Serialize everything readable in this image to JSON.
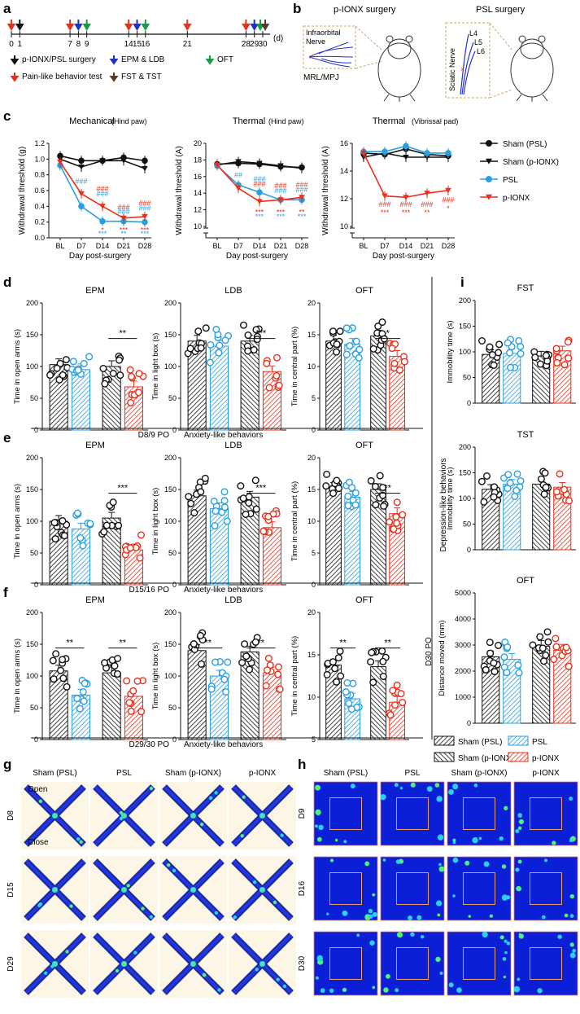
{
  "colors": {
    "black": "#111111",
    "red": "#e8301c",
    "blue": "#2a9fe0",
    "darkblue": "#1f2fcc",
    "green": "#179a48",
    "brown": "#5a3a22",
    "heat_bg": "#0a1fd6",
    "arena_bg": "#fbf6e6"
  },
  "panels": {
    "a": "a",
    "b": "b",
    "c": "c",
    "d": "d",
    "e": "e",
    "f": "f",
    "g": "g",
    "h": "h",
    "i": "i"
  },
  "timeline": {
    "unit": "(d)",
    "ticks": [
      "0",
      "1",
      "7",
      "8",
      "9",
      "14",
      "15",
      "16",
      "21",
      "28",
      "29",
      "30"
    ],
    "legend": [
      {
        "label": "p-IONX/PSL surgery",
        "color": "#111111"
      },
      {
        "label": "EPM & LDB",
        "color": "#1f2fcc"
      },
      {
        "label": "OFT",
        "color": "#179a48"
      },
      {
        "label": "Pain-like behavior test",
        "color": "#e8301c"
      },
      {
        "label": "FST & TST",
        "color": "#5a3a22"
      }
    ]
  },
  "schematic": {
    "left_title": "p-IONX surgery",
    "right_title": "PSL surgery",
    "left_box": [
      "Infraorbital",
      "Nerve"
    ],
    "left_caption": "MRL/MPJ",
    "right_levels": [
      "L4",
      "L5",
      "L6"
    ],
    "right_box": "Sciatic Nerve"
  },
  "chart_data": [
    {
      "id": "c-mech",
      "type": "line",
      "title": "Mechanical",
      "subtitle": "(Hind paw)",
      "ylabel": "Withdrawal threshold (g)",
      "xlabel": "Day post-surgery",
      "categories": [
        "BL",
        "D7",
        "D14",
        "D21",
        "D28"
      ],
      "ylim": [
        0,
        1.2
      ],
      "yticks": [
        "0.0",
        "0.2",
        "0.4",
        "0.6",
        "0.8",
        "1.0",
        "1.2"
      ],
      "series": [
        {
          "name": "Sham (PSL)",
          "values": [
            1.04,
            0.98,
            0.98,
            1.02,
            0.98
          ]
        },
        {
          "name": "Sham (p-IONX)",
          "values": [
            1.0,
            0.9,
            0.98,
            0.98,
            0.88
          ]
        },
        {
          "name": "PSL",
          "values": [
            0.92,
            0.4,
            0.21,
            0.21,
            0.2
          ]
        },
        {
          "name": "p-IONX",
          "values": [
            0.96,
            0.56,
            0.4,
            0.25,
            0.27
          ]
        }
      ],
      "annotations": [
        {
          "text": "###",
          "x": "D7",
          "y": 0.72,
          "color": "#2a9fe0"
        },
        {
          "text": "###",
          "x": "D14",
          "y": 0.62,
          "color": "#e8301c"
        },
        {
          "text": "###",
          "x": "D14",
          "y": 0.56,
          "color": "#2a9fe0"
        },
        {
          "text": "*",
          "x": "D14",
          "y": 0.1,
          "color": "#e8301c"
        },
        {
          "text": "***",
          "x": "D14",
          "y": 0.05,
          "color": "#2a9fe0"
        },
        {
          "text": "###",
          "x": "D21",
          "y": 0.39,
          "color": "#e8301c"
        },
        {
          "text": "###",
          "x": "D21",
          "y": 0.33,
          "color": "#2a9fe0"
        },
        {
          "text": "***",
          "x": "D21",
          "y": 0.1,
          "color": "#e8301c"
        },
        {
          "text": "**",
          "x": "D21",
          "y": 0.05,
          "color": "#2a9fe0"
        },
        {
          "text": "###",
          "x": "D28",
          "y": 0.44,
          "color": "#e8301c"
        },
        {
          "text": "###",
          "x": "D28",
          "y": 0.38,
          "color": "#2a9fe0"
        },
        {
          "text": "***",
          "x": "D28",
          "y": 0.1,
          "color": "#e8301c"
        },
        {
          "text": "***",
          "x": "D28",
          "y": 0.05,
          "color": "#2a9fe0"
        }
      ]
    },
    {
      "id": "c-thermal-hind",
      "type": "line",
      "title": "Thermal",
      "subtitle": "(Hind paw)",
      "ylabel": "Withdrawal threshold (A)",
      "xlabel": "Day post-surgery",
      "categories": [
        "BL",
        "D7",
        "D14",
        "D21",
        "D28"
      ],
      "ylim": [
        10,
        20
      ],
      "yticks": [
        "10",
        "12",
        "14",
        "16",
        "18",
        "20"
      ],
      "axis_break": true,
      "series": [
        {
          "name": "Sham (PSL)",
          "values": [
            17.5,
            17.6,
            17.5,
            17.2,
            17.1
          ]
        },
        {
          "name": "Sham (p-IONX)",
          "values": [
            17.4,
            17.8,
            17.6,
            17.3,
            17.0
          ]
        },
        {
          "name": "PSL",
          "values": [
            17.3,
            15.0,
            14.1,
            13.2,
            13.2
          ]
        },
        {
          "name": "p-IONX",
          "values": [
            17.4,
            14.6,
            13.0,
            13.2,
            13.5
          ]
        }
      ],
      "annotations": [
        {
          "text": "##",
          "x": "D7",
          "y": 16.2,
          "color": "#2a9fe0"
        },
        {
          "text": "###",
          "x": "D14",
          "y": 15.7,
          "color": "#2a9fe0"
        },
        {
          "text": "###",
          "x": "D14",
          "y": 15.1,
          "color": "#e8301c"
        },
        {
          "text": "***",
          "x": "D14",
          "y": 11.7,
          "color": "#e8301c"
        },
        {
          "text": "***",
          "x": "D14",
          "y": 11.2,
          "color": "#2a9fe0"
        },
        {
          "text": "###",
          "x": "D21",
          "y": 14.9,
          "color": "#e8301c"
        },
        {
          "text": "###",
          "x": "D21",
          "y": 14.3,
          "color": "#2a9fe0"
        },
        {
          "text": "***",
          "x": "D21",
          "y": 11.7,
          "color": "#e8301c"
        },
        {
          "text": "***",
          "x": "D21",
          "y": 11.2,
          "color": "#2a9fe0"
        },
        {
          "text": "###",
          "x": "D28",
          "y": 15.0,
          "color": "#e8301c"
        },
        {
          "text": "###",
          "x": "D28",
          "y": 14.4,
          "color": "#2a9fe0"
        },
        {
          "text": "**",
          "x": "D28",
          "y": 11.7,
          "color": "#e8301c"
        },
        {
          "text": "***",
          "x": "D28",
          "y": 11.2,
          "color": "#2a9fe0"
        }
      ]
    },
    {
      "id": "c-thermal-vib",
      "type": "line",
      "title": "Thermal",
      "subtitle": "(Vibrissal pad)",
      "ylabel": "Withdrawal threshold (A)",
      "xlabel": "Day post-surgery",
      "categories": [
        "BL",
        "D7",
        "D14",
        "D21",
        "D28"
      ],
      "ylim": [
        10,
        16
      ],
      "yticks": [
        "10",
        "12",
        "14",
        "16"
      ],
      "axis_break": true,
      "series": [
        {
          "name": "Sham (PSL)",
          "values": [
            15.3,
            15.2,
            15.6,
            15.2,
            15.1
          ]
        },
        {
          "name": "Sham (p-IONX)",
          "values": [
            15.0,
            15.3,
            15.0,
            15.0,
            15.0
          ]
        },
        {
          "name": "PSL",
          "values": [
            15.4,
            15.4,
            15.8,
            15.3,
            15.3
          ]
        },
        {
          "name": "p-IONX",
          "values": [
            15.3,
            12.2,
            12.1,
            12.4,
            12.6
          ]
        }
      ],
      "annotations": [
        {
          "text": "###",
          "x": "D7",
          "y": 11.6,
          "color": "#e8301c"
        },
        {
          "text": "***",
          "x": "D7",
          "y": 11.0,
          "color": "#e8301c"
        },
        {
          "text": "###",
          "x": "D14",
          "y": 11.6,
          "color": "#e8301c"
        },
        {
          "text": "***",
          "x": "D14",
          "y": 11.0,
          "color": "#e8301c"
        },
        {
          "text": "###",
          "x": "D21",
          "y": 11.6,
          "color": "#e8301c"
        },
        {
          "text": "**",
          "x": "D21",
          "y": 11.0,
          "color": "#e8301c"
        },
        {
          "text": "###",
          "x": "D28",
          "y": 11.9,
          "color": "#e8301c"
        },
        {
          "text": "*",
          "x": "D28",
          "y": 11.3,
          "color": "#e8301c"
        }
      ]
    },
    {
      "id": "d-epm",
      "type": "bar",
      "title": "EPM",
      "ylabel": "Time in open arms (s)",
      "ylim": [
        0,
        200
      ],
      "yticks": [
        "0",
        "50",
        "100",
        "150",
        "200"
      ],
      "series": [
        {
          "name": "Sham (PSL)",
          "values": [
            103
          ]
        },
        {
          "name": "PSL",
          "values": [
            95
          ]
        },
        {
          "name": "Sham (p-IONX)",
          "values": [
            100
          ]
        },
        {
          "name": "p-IONX",
          "values": [
            68
          ]
        }
      ],
      "significance": [
        {
          "groups": [
            2,
            3
          ],
          "text": "**"
        }
      ]
    },
    {
      "id": "d-ldb",
      "type": "bar",
      "title": "LDB",
      "ylabel": "Time in light box (s)",
      "ylim": [
        0,
        200
      ],
      "yticks": [
        "0",
        "50",
        "100",
        "150",
        "200"
      ],
      "series": [
        {
          "name": "Sham (PSL)",
          "values": [
            140
          ]
        },
        {
          "name": "PSL",
          "values": [
            132
          ]
        },
        {
          "name": "Sham (p-IONX)",
          "values": [
            140
          ]
        },
        {
          "name": "p-IONX",
          "values": [
            92
          ]
        }
      ],
      "significance": [
        {
          "groups": [
            2,
            3
          ],
          "text": "***"
        }
      ]
    },
    {
      "id": "d-oft",
      "type": "bar",
      "title": "OFT",
      "ylabel": "Time in central part (%)",
      "ylim": [
        0,
        20
      ],
      "yticks": [
        "0",
        "5",
        "10",
        "15",
        "20"
      ],
      "series": [
        {
          "name": "Sham (PSL)",
          "values": [
            14.0
          ]
        },
        {
          "name": "PSL",
          "values": [
            13.5
          ]
        },
        {
          "name": "Sham (p-IONX)",
          "values": [
            14.8
          ]
        },
        {
          "name": "p-IONX",
          "values": [
            11.6
          ]
        }
      ],
      "significance": [
        {
          "groups": [
            2,
            3
          ],
          "text": "*"
        }
      ]
    },
    {
      "id": "e-epm",
      "type": "bar",
      "title": "EPM",
      "ylabel": "Time in open arms (s)",
      "ylim": [
        0,
        200
      ],
      "yticks": [
        "0",
        "50",
        "100",
        "150",
        "200"
      ],
      "series": [
        {
          "name": "Sham (PSL)",
          "values": [
            100
          ]
        },
        {
          "name": "PSL",
          "values": [
            88
          ]
        },
        {
          "name": "Sham (p-IONX)",
          "values": [
            105
          ]
        },
        {
          "name": "p-IONX",
          "values": [
            55
          ]
        }
      ],
      "significance": [
        {
          "groups": [
            2,
            3
          ],
          "text": "***"
        }
      ]
    },
    {
      "id": "e-ldb",
      "type": "bar",
      "title": "LDB",
      "ylabel": "Time in light box (s)",
      "ylim": [
        0,
        200
      ],
      "yticks": [
        "0",
        "50",
        "100",
        "150",
        "200"
      ],
      "series": [
        {
          "name": "Sham (PSL)",
          "values": [
            140
          ]
        },
        {
          "name": "PSL",
          "values": [
            120
          ]
        },
        {
          "name": "Sham (p-IONX)",
          "values": [
            138
          ]
        },
        {
          "name": "p-IONX",
          "values": [
            90
          ]
        }
      ],
      "significance": [
        {
          "groups": [
            2,
            3
          ],
          "text": "***"
        }
      ]
    },
    {
      "id": "e-oft",
      "type": "bar",
      "title": "OFT",
      "ylabel": "Time in central part (%)",
      "ylim": [
        0,
        20
      ],
      "yticks": [
        "0",
        "5",
        "10",
        "15",
        "20"
      ],
      "series": [
        {
          "name": "Sham (PSL)",
          "values": [
            15.2
          ]
        },
        {
          "name": "PSL",
          "values": [
            13.8
          ]
        },
        {
          "name": "Sham (p-IONX)",
          "values": [
            15.0
          ]
        },
        {
          "name": "p-IONX",
          "values": [
            11.2
          ]
        }
      ],
      "significance": [
        {
          "groups": [
            2,
            3
          ],
          "text": "**"
        }
      ]
    },
    {
      "id": "f-epm",
      "type": "bar",
      "title": "EPM",
      "ylabel": "Time in open arms (s)",
      "ylim": [
        0,
        200
      ],
      "yticks": [
        "0",
        "50",
        "100",
        "150",
        "200"
      ],
      "series": [
        {
          "name": "Sham (PSL)",
          "values": [
            108
          ]
        },
        {
          "name": "PSL",
          "values": [
            70
          ]
        },
        {
          "name": "Sham (p-IONX)",
          "values": [
            105
          ]
        },
        {
          "name": "p-IONX",
          "values": [
            68
          ]
        }
      ],
      "significance": [
        {
          "groups": [
            0,
            1
          ],
          "text": "**"
        },
        {
          "groups": [
            2,
            3
          ],
          "text": "**"
        }
      ]
    },
    {
      "id": "f-ldb",
      "type": "bar",
      "title": "LDB",
      "ylabel": "Time in light box (s)",
      "ylim": [
        0,
        200
      ],
      "yticks": [
        "0",
        "50",
        "100",
        "150",
        "200"
      ],
      "series": [
        {
          "name": "Sham (PSL)",
          "values": [
            140
          ]
        },
        {
          "name": "PSL",
          "values": [
            100
          ]
        },
        {
          "name": "Sham (p-IONX)",
          "values": [
            138
          ]
        },
        {
          "name": "p-IONX",
          "values": [
            105
          ]
        }
      ],
      "significance": [
        {
          "groups": [
            0,
            1
          ],
          "text": "**"
        },
        {
          "groups": [
            2,
            3
          ],
          "text": "**"
        }
      ]
    },
    {
      "id": "f-oft",
      "type": "bar",
      "title": "OFT",
      "ylabel": "Time in central part (%)",
      "ylim": [
        5,
        20
      ],
      "yticks": [
        "5",
        "10",
        "15",
        "20"
      ],
      "series": [
        {
          "name": "Sham (PSL)",
          "values": [
            13.8
          ]
        },
        {
          "name": "PSL",
          "values": [
            9.8
          ]
        },
        {
          "name": "Sham (p-IONX)",
          "values": [
            13.6
          ]
        },
        {
          "name": "p-IONX",
          "values": [
            9.4
          ]
        }
      ],
      "significance": [
        {
          "groups": [
            0,
            1
          ],
          "text": "**"
        },
        {
          "groups": [
            2,
            3
          ],
          "text": "**"
        }
      ]
    },
    {
      "id": "i-fst",
      "type": "bar",
      "title": "FST",
      "ylabel": "Immobility time (s)",
      "ylim": [
        0,
        200
      ],
      "yticks": [
        "0",
        "50",
        "100",
        "150",
        "200"
      ],
      "series": [
        {
          "name": "Sham (PSL)",
          "values": [
            95
          ]
        },
        {
          "name": "PSL",
          "values": [
            97
          ]
        },
        {
          "name": "Sham (p-IONX)",
          "values": [
            92
          ]
        },
        {
          "name": "p-IONX",
          "values": [
            102
          ]
        }
      ],
      "significance": []
    },
    {
      "id": "i-tst",
      "type": "bar",
      "title": "TST",
      "ylabel": "Immobility time (s)",
      "ylim": [
        0,
        200
      ],
      "yticks": [
        "0",
        "50",
        "100",
        "150",
        "200"
      ],
      "series": [
        {
          "name": "Sham (PSL)",
          "values": [
            118
          ]
        },
        {
          "name": "PSL",
          "values": [
            128
          ]
        },
        {
          "name": "Sham (p-IONX)",
          "values": [
            128
          ]
        },
        {
          "name": "p-IONX",
          "values": [
            122
          ]
        }
      ],
      "significance": []
    },
    {
      "id": "i-oft",
      "type": "bar",
      "title": "OFT",
      "ylabel": "Distance moved (mm)",
      "ylim": [
        0,
        5000
      ],
      "yticks": [
        "0",
        "1000",
        "2000",
        "3000",
        "4000",
        "5000"
      ],
      "series": [
        {
          "name": "Sham (PSL)",
          "values": [
            2550
          ]
        },
        {
          "name": "PSL",
          "values": [
            2450
          ]
        },
        {
          "name": "Sham (p-IONX)",
          "values": [
            2950
          ]
        },
        {
          "name": "p-IONX",
          "values": [
            2800
          ]
        }
      ],
      "significance": []
    }
  ],
  "line_legend": [
    "Sham (PSL)",
    "Sham (p-IONX)",
    "PSL",
    "p-IONX"
  ],
  "row_captions": {
    "d": [
      "D8/9 PO",
      "Anxiety-like behaviors"
    ],
    "e": [
      "D15/16 PO",
      "Anxiety-like behaviors"
    ],
    "f": [
      "D29/30 PO",
      "Anxiety-like behaviors"
    ]
  },
  "i_side": {
    "label": "Depression-like behaviors",
    "po": "D30 PO"
  },
  "bar_legend": [
    "Sham (PSL)",
    "PSL",
    "Sham (p-IONX)",
    "p-IONX"
  ],
  "heatmaps": {
    "columns": [
      "Sham (PSL)",
      "PSL",
      "Sham (p-IONX)",
      "p-IONX"
    ],
    "g_rows": [
      "D8",
      "D15",
      "D29"
    ],
    "h_rows": [
      "D9",
      "D16",
      "D30"
    ],
    "open_label": "Open",
    "close_label": "Close"
  }
}
